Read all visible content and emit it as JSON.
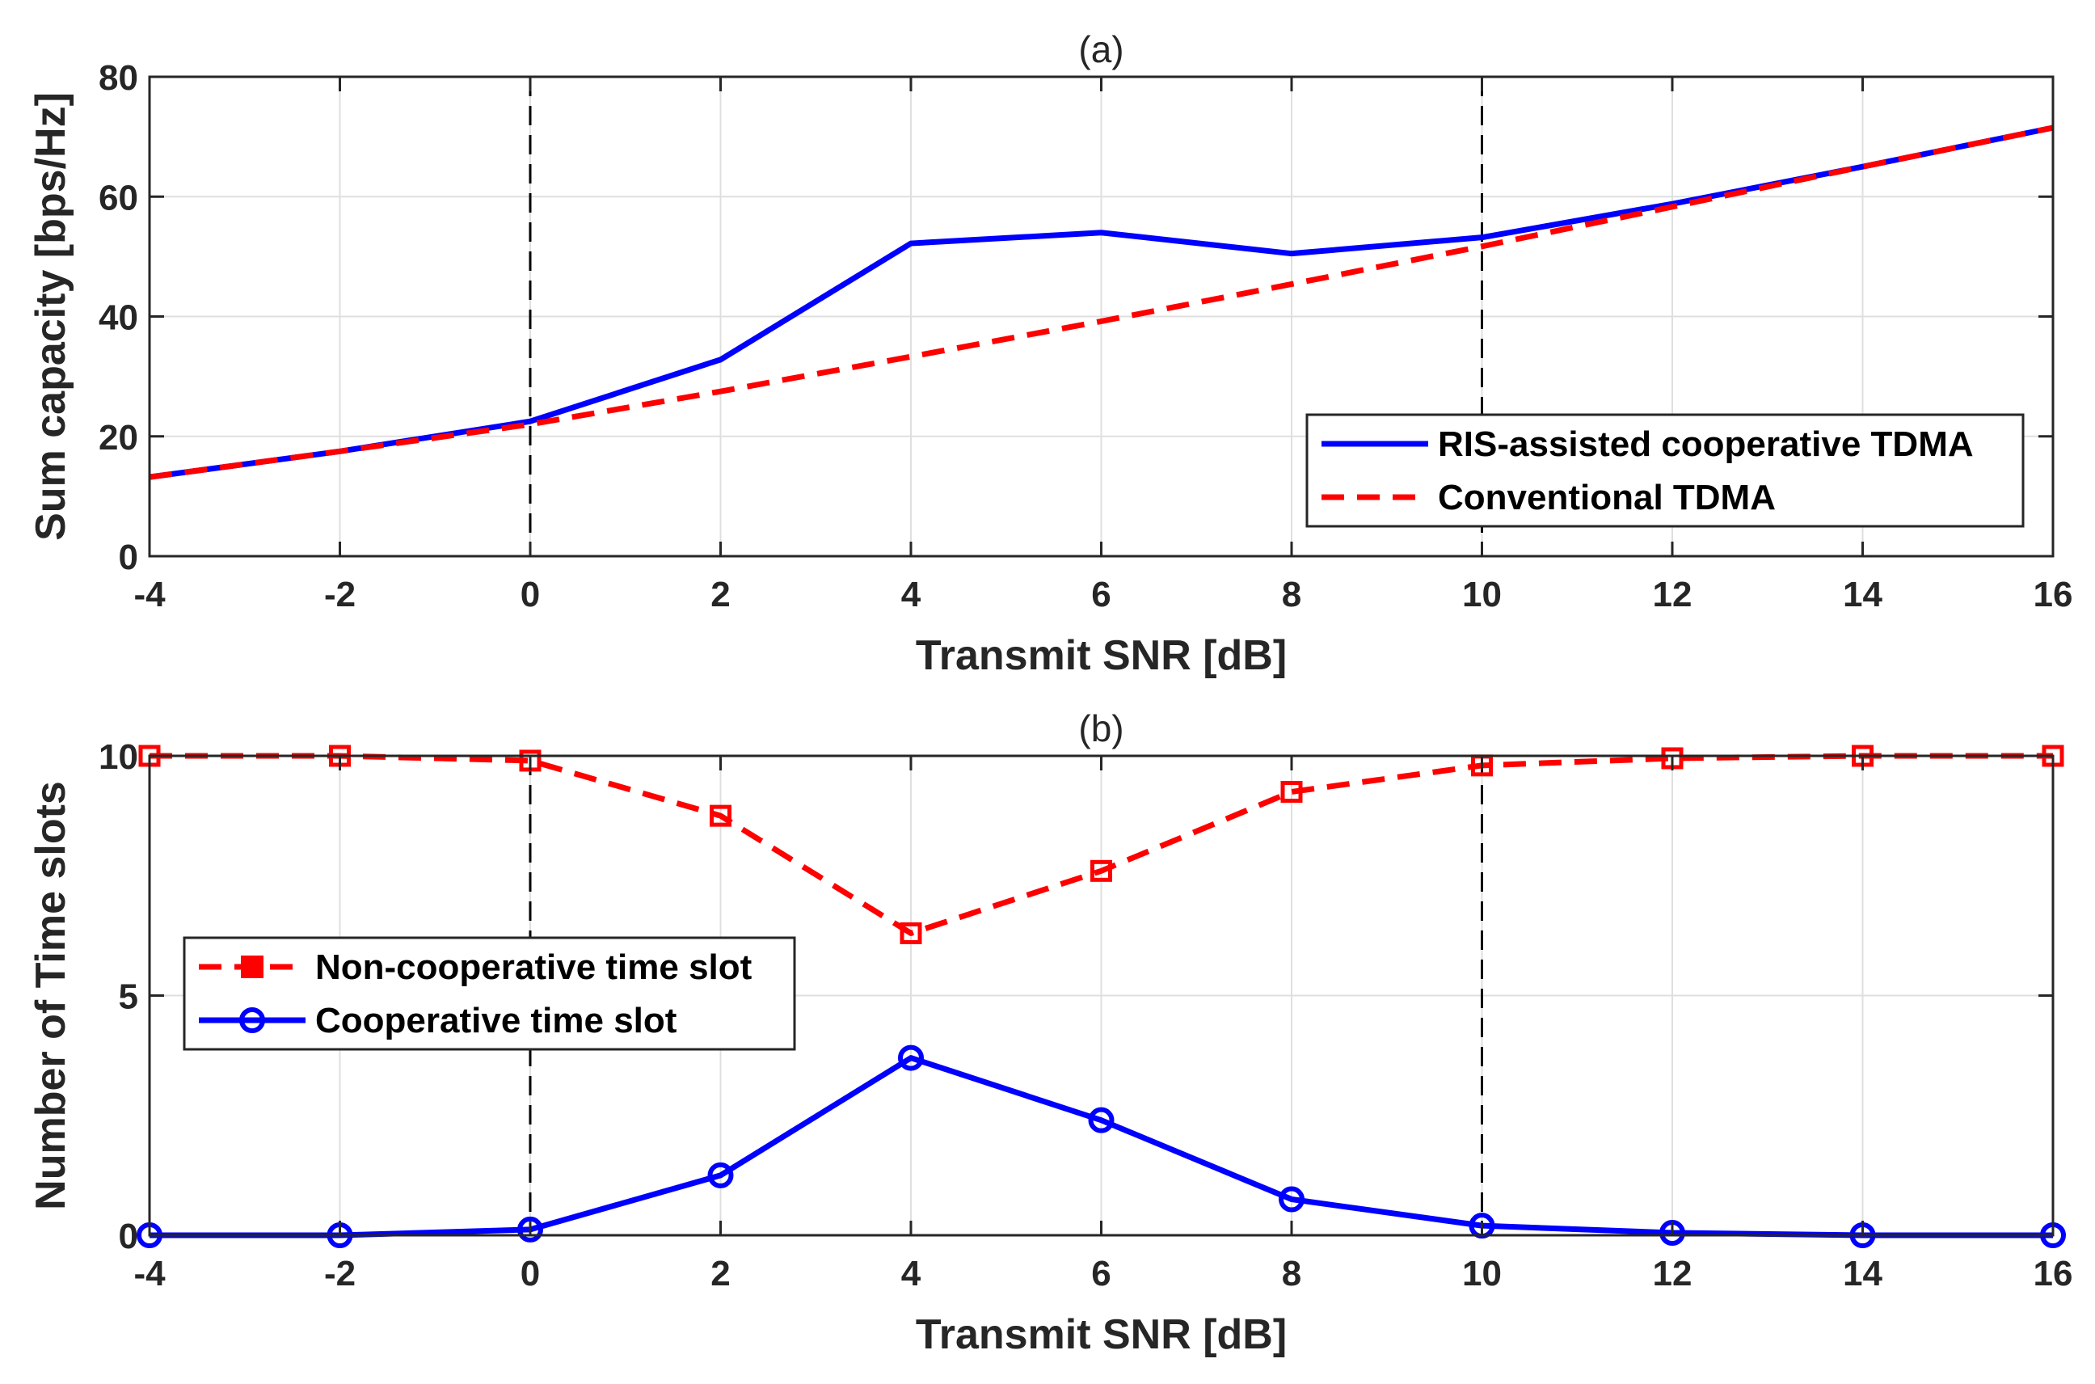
{
  "chart_data": [
    {
      "type": "line",
      "title": "(a)",
      "xlabel": "Transmit SNR [dB]",
      "ylabel": "Sum capacity [bps/Hz]",
      "xlim": [
        -4,
        16
      ],
      "ylim": [
        0,
        80
      ],
      "xticks": [
        "-4",
        "-2",
        "0",
        "2",
        "4",
        "6",
        "8",
        "10",
        "12",
        "14",
        "16"
      ],
      "yticks": [
        "0",
        "20",
        "40",
        "60",
        "80"
      ],
      "grid": true,
      "x": [
        -4,
        -2,
        0,
        2,
        4,
        6,
        8,
        10,
        12,
        14,
        16
      ],
      "vlines": [
        0,
        10
      ],
      "legend_location": "bottom-right",
      "series": [
        {
          "name": "RIS-assisted cooperative TDMA",
          "color": "#0000ff",
          "style": "solid",
          "values": [
            13.2,
            17.5,
            22.5,
            32.8,
            52.2,
            54.0,
            50.5,
            53.2,
            58.8,
            65.0,
            71.5
          ]
        },
        {
          "name": "Conventional TDMA",
          "color": "#ff0000",
          "style": "dashed",
          "values": [
            13.2,
            17.5,
            22.0,
            27.5,
            33.3,
            39.2,
            45.4,
            51.7,
            58.3,
            65.0,
            71.5
          ]
        }
      ]
    },
    {
      "type": "line",
      "title": "(b)",
      "xlabel": "Transmit SNR [dB]",
      "ylabel": "Number of Time slots",
      "xlim": [
        -4,
        16
      ],
      "ylim": [
        0,
        10
      ],
      "xticks": [
        "-4",
        "-2",
        "0",
        "2",
        "4",
        "6",
        "8",
        "10",
        "12",
        "14",
        "16"
      ],
      "yticks": [
        "0",
        "5",
        "10"
      ],
      "grid": true,
      "x": [
        -4,
        -2,
        0,
        2,
        4,
        6,
        8,
        10,
        12,
        14,
        16
      ],
      "vlines": [
        0,
        10
      ],
      "legend_location": "middle-left",
      "series": [
        {
          "name": "Non-cooperative time slot",
          "color": "#ff0000",
          "style": "dashed",
          "marker": "square",
          "values": [
            10.0,
            10.0,
            9.9,
            8.75,
            6.3,
            7.6,
            9.25,
            9.8,
            9.95,
            10.0,
            10.0
          ]
        },
        {
          "name": "Cooperative time slot",
          "color": "#0000ff",
          "style": "solid",
          "marker": "circle",
          "values": [
            0.0,
            0.0,
            0.12,
            1.25,
            3.7,
            2.4,
            0.75,
            0.2,
            0.05,
            0.0,
            0.0
          ]
        }
      ]
    }
  ]
}
